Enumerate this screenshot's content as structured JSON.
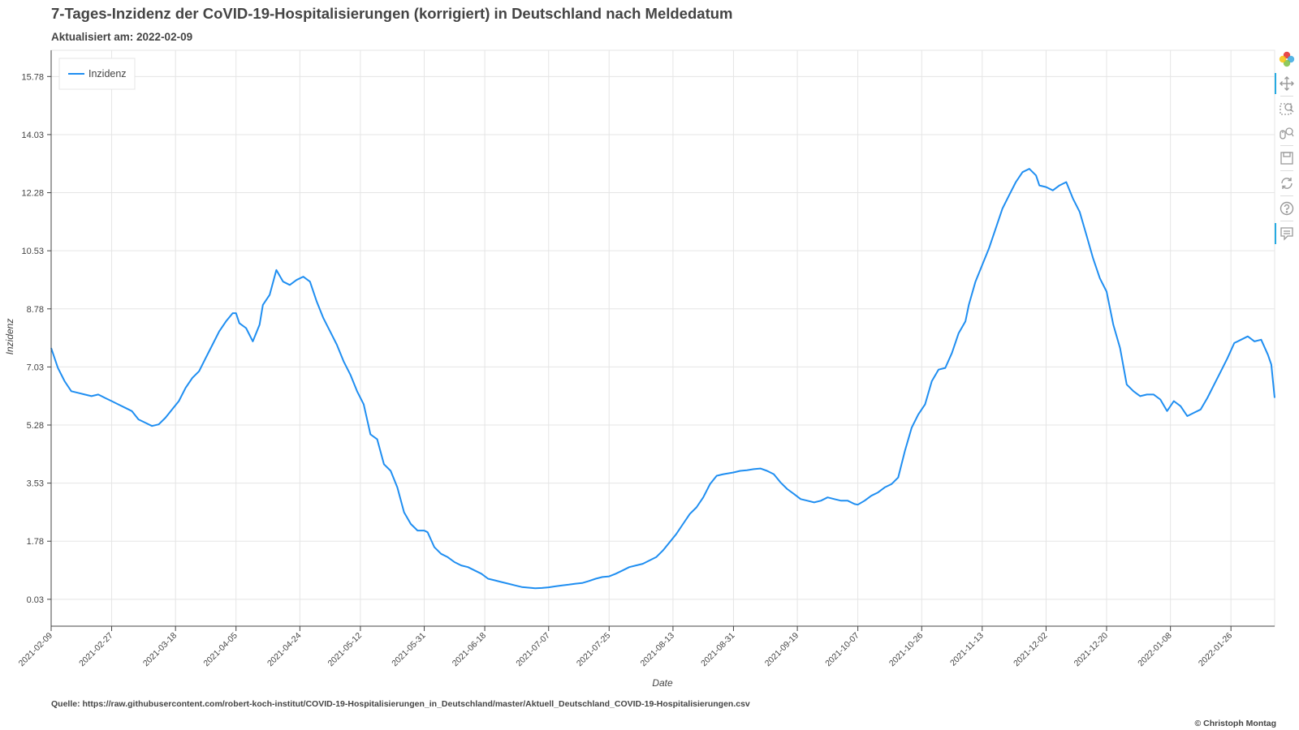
{
  "header": {
    "title": "7-Tages-Inzidenz der CoVID-19-Hospitalisierungen (korrigiert) in Deutschland nach Meldedatum",
    "subtitle": "Aktualisiert am: 2022-02-09"
  },
  "footer": {
    "source": "Quelle: https://raw.githubusercontent.com/robert-koch-institut/COVID-19-Hospitalisierungen_in_Deutschland/master/Aktuell_Deutschland_COVID-19-Hospitalisierungen.csv",
    "copyright": "© Christoph Montag"
  },
  "toolbar": {
    "tools": [
      {
        "name": "bokeh-logo-icon",
        "active": false
      },
      {
        "name": "pan-icon",
        "active": true
      },
      {
        "name": "box-zoom-icon",
        "active": false
      },
      {
        "name": "wheel-zoom-icon",
        "active": false
      },
      {
        "name": "save-icon",
        "active": false
      },
      {
        "name": "reset-icon",
        "active": false
      },
      {
        "name": "help-icon",
        "active": false
      },
      {
        "name": "hover-icon",
        "active": true
      }
    ]
  },
  "chart_data": {
    "type": "line",
    "xlabel": "Date",
    "ylabel": "Inzidenz",
    "x_range": [
      "2021-02-09",
      "2022-02-08"
    ],
    "ylim": [
      -0.78,
      16.57
    ],
    "y_ticks": [
      "0.03",
      "1.78",
      "3.53",
      "5.28",
      "7.03",
      "8.78",
      "10.53",
      "12.28",
      "14.03",
      "15.78"
    ],
    "x_ticks": [
      "2021-02-09",
      "2021-02-27",
      "2021-03-18",
      "2021-04-05",
      "2021-04-24",
      "2021-05-12",
      "2021-05-31",
      "2021-06-18",
      "2021-07-07",
      "2021-07-25",
      "2021-08-13",
      "2021-08-31",
      "2021-09-19",
      "2021-10-07",
      "2021-10-26",
      "2021-11-13",
      "2021-12-02",
      "2021-12-20",
      "2022-01-08",
      "2022-01-26"
    ],
    "grid": true,
    "legend": "top-left",
    "color": "#1f8ef1",
    "series": [
      {
        "name": "Inzidenz",
        "points": [
          [
            "2021-02-09",
            7.6
          ],
          [
            "2021-02-11",
            7.0
          ],
          [
            "2021-02-13",
            6.6
          ],
          [
            "2021-02-15",
            6.3
          ],
          [
            "2021-02-17",
            6.25
          ],
          [
            "2021-02-19",
            6.2
          ],
          [
            "2021-02-21",
            6.15
          ],
          [
            "2021-02-23",
            6.2
          ],
          [
            "2021-02-25",
            6.1
          ],
          [
            "2021-02-27",
            6.0
          ],
          [
            "2021-03-01",
            5.9
          ],
          [
            "2021-03-03",
            5.8
          ],
          [
            "2021-03-05",
            5.7
          ],
          [
            "2021-03-07",
            5.45
          ],
          [
            "2021-03-09",
            5.35
          ],
          [
            "2021-03-11",
            5.25
          ],
          [
            "2021-03-13",
            5.3
          ],
          [
            "2021-03-15",
            5.5
          ],
          [
            "2021-03-17",
            5.75
          ],
          [
            "2021-03-19",
            6.0
          ],
          [
            "2021-03-21",
            6.4
          ],
          [
            "2021-03-23",
            6.7
          ],
          [
            "2021-03-25",
            6.9
          ],
          [
            "2021-03-27",
            7.3
          ],
          [
            "2021-03-29",
            7.7
          ],
          [
            "2021-03-31",
            8.1
          ],
          [
            "2021-04-02",
            8.4
          ],
          [
            "2021-04-04",
            8.65
          ],
          [
            "2021-04-05",
            8.65
          ],
          [
            "2021-04-06",
            8.35
          ],
          [
            "2021-04-08",
            8.2
          ],
          [
            "2021-04-10",
            7.8
          ],
          [
            "2021-04-12",
            8.3
          ],
          [
            "2021-04-13",
            8.9
          ],
          [
            "2021-04-15",
            9.2
          ],
          [
            "2021-04-17",
            9.95
          ],
          [
            "2021-04-19",
            9.6
          ],
          [
            "2021-04-21",
            9.5
          ],
          [
            "2021-04-23",
            9.65
          ],
          [
            "2021-04-25",
            9.75
          ],
          [
            "2021-04-27",
            9.6
          ],
          [
            "2021-04-29",
            9.0
          ],
          [
            "2021-05-01",
            8.5
          ],
          [
            "2021-05-03",
            8.1
          ],
          [
            "2021-05-05",
            7.7
          ],
          [
            "2021-05-07",
            7.2
          ],
          [
            "2021-05-09",
            6.8
          ],
          [
            "2021-05-11",
            6.3
          ],
          [
            "2021-05-13",
            5.9
          ],
          [
            "2021-05-15",
            5.0
          ],
          [
            "2021-05-17",
            4.85
          ],
          [
            "2021-05-19",
            4.1
          ],
          [
            "2021-05-21",
            3.9
          ],
          [
            "2021-05-23",
            3.4
          ],
          [
            "2021-05-25",
            2.65
          ],
          [
            "2021-05-27",
            2.3
          ],
          [
            "2021-05-29",
            2.1
          ],
          [
            "2021-05-31",
            2.1
          ],
          [
            "2021-06-01",
            2.05
          ],
          [
            "2021-06-03",
            1.6
          ],
          [
            "2021-06-05",
            1.4
          ],
          [
            "2021-06-07",
            1.3
          ],
          [
            "2021-06-09",
            1.15
          ],
          [
            "2021-06-11",
            1.05
          ],
          [
            "2021-06-13",
            1.0
          ],
          [
            "2021-06-15",
            0.9
          ],
          [
            "2021-06-17",
            0.8
          ],
          [
            "2021-06-19",
            0.65
          ],
          [
            "2021-06-21",
            0.6
          ],
          [
            "2021-06-23",
            0.55
          ],
          [
            "2021-06-25",
            0.5
          ],
          [
            "2021-06-27",
            0.45
          ],
          [
            "2021-06-29",
            0.4
          ],
          [
            "2021-07-01",
            0.38
          ],
          [
            "2021-07-03",
            0.36
          ],
          [
            "2021-07-05",
            0.37
          ],
          [
            "2021-07-07",
            0.39
          ],
          [
            "2021-07-09",
            0.42
          ],
          [
            "2021-07-11",
            0.45
          ],
          [
            "2021-07-13",
            0.47
          ],
          [
            "2021-07-15",
            0.5
          ],
          [
            "2021-07-17",
            0.52
          ],
          [
            "2021-07-19",
            0.58
          ],
          [
            "2021-07-21",
            0.65
          ],
          [
            "2021-07-23",
            0.7
          ],
          [
            "2021-07-25",
            0.72
          ],
          [
            "2021-07-27",
            0.8
          ],
          [
            "2021-07-29",
            0.9
          ],
          [
            "2021-07-31",
            1.0
          ],
          [
            "2021-08-02",
            1.05
          ],
          [
            "2021-08-04",
            1.1
          ],
          [
            "2021-08-06",
            1.2
          ],
          [
            "2021-08-08",
            1.3
          ],
          [
            "2021-08-10",
            1.5
          ],
          [
            "2021-08-12",
            1.75
          ],
          [
            "2021-08-14",
            2.0
          ],
          [
            "2021-08-16",
            2.3
          ],
          [
            "2021-08-18",
            2.6
          ],
          [
            "2021-08-20",
            2.8
          ],
          [
            "2021-08-22",
            3.1
          ],
          [
            "2021-08-24",
            3.5
          ],
          [
            "2021-08-26",
            3.75
          ],
          [
            "2021-08-28",
            3.8
          ],
          [
            "2021-08-31",
            3.85
          ],
          [
            "2021-09-02",
            3.9
          ],
          [
            "2021-09-04",
            3.92
          ],
          [
            "2021-09-06",
            3.95
          ],
          [
            "2021-09-08",
            3.97
          ],
          [
            "2021-09-10",
            3.9
          ],
          [
            "2021-09-12",
            3.8
          ],
          [
            "2021-09-14",
            3.55
          ],
          [
            "2021-09-16",
            3.35
          ],
          [
            "2021-09-18",
            3.2
          ],
          [
            "2021-09-20",
            3.05
          ],
          [
            "2021-09-22",
            3.0
          ],
          [
            "2021-09-24",
            2.95
          ],
          [
            "2021-09-26",
            3.0
          ],
          [
            "2021-09-28",
            3.1
          ],
          [
            "2021-09-30",
            3.05
          ],
          [
            "2021-10-02",
            3.0
          ],
          [
            "2021-10-04",
            3.0
          ],
          [
            "2021-10-06",
            2.9
          ],
          [
            "2021-10-07",
            2.88
          ],
          [
            "2021-10-09",
            3.0
          ],
          [
            "2021-10-11",
            3.15
          ],
          [
            "2021-10-13",
            3.25
          ],
          [
            "2021-10-15",
            3.4
          ],
          [
            "2021-10-17",
            3.5
          ],
          [
            "2021-10-19",
            3.7
          ],
          [
            "2021-10-21",
            4.5
          ],
          [
            "2021-10-23",
            5.2
          ],
          [
            "2021-10-25",
            5.6
          ],
          [
            "2021-10-27",
            5.9
          ],
          [
            "2021-10-29",
            6.6
          ],
          [
            "2021-10-31",
            6.95
          ],
          [
            "2021-11-02",
            7.0
          ],
          [
            "2021-11-04",
            7.45
          ],
          [
            "2021-11-06",
            8.05
          ],
          [
            "2021-11-08",
            8.4
          ],
          [
            "2021-11-09",
            8.9
          ],
          [
            "2021-11-11",
            9.6
          ],
          [
            "2021-11-13",
            10.1
          ],
          [
            "2021-11-15",
            10.6
          ],
          [
            "2021-11-17",
            11.2
          ],
          [
            "2021-11-19",
            11.8
          ],
          [
            "2021-11-21",
            12.2
          ],
          [
            "2021-11-23",
            12.6
          ],
          [
            "2021-11-25",
            12.9
          ],
          [
            "2021-11-27",
            13.0
          ],
          [
            "2021-11-29",
            12.8
          ],
          [
            "2021-11-30",
            12.5
          ],
          [
            "2021-12-02",
            12.45
          ],
          [
            "2021-12-04",
            12.35
          ],
          [
            "2021-12-06",
            12.5
          ],
          [
            "2021-12-08",
            12.6
          ],
          [
            "2021-12-10",
            12.1
          ],
          [
            "2021-12-12",
            11.7
          ],
          [
            "2021-12-14",
            11.0
          ],
          [
            "2021-12-16",
            10.3
          ],
          [
            "2021-12-18",
            9.7
          ],
          [
            "2021-12-20",
            9.3
          ],
          [
            "2021-12-22",
            8.3
          ],
          [
            "2021-12-24",
            7.6
          ],
          [
            "2021-12-26",
            6.5
          ],
          [
            "2021-12-28",
            6.3
          ],
          [
            "2021-12-30",
            6.15
          ],
          [
            "2022-01-01",
            6.2
          ],
          [
            "2022-01-03",
            6.2
          ],
          [
            "2022-01-05",
            6.05
          ],
          [
            "2022-01-07",
            5.7
          ],
          [
            "2022-01-09",
            6.0
          ],
          [
            "2022-01-11",
            5.85
          ],
          [
            "2022-01-13",
            5.55
          ],
          [
            "2022-01-15",
            5.65
          ],
          [
            "2022-01-17",
            5.75
          ],
          [
            "2022-01-19",
            6.1
          ],
          [
            "2022-01-21",
            6.5
          ],
          [
            "2022-01-23",
            6.9
          ],
          [
            "2022-01-25",
            7.3
          ],
          [
            "2022-01-27",
            7.75
          ],
          [
            "2022-01-29",
            7.85
          ],
          [
            "2022-01-31",
            7.95
          ],
          [
            "2022-02-02",
            7.8
          ],
          [
            "2022-02-04",
            7.85
          ],
          [
            "2022-02-06",
            7.4
          ],
          [
            "2022-02-07",
            7.1
          ],
          [
            "2022-02-08",
            6.1
          ]
        ]
      }
    ]
  }
}
